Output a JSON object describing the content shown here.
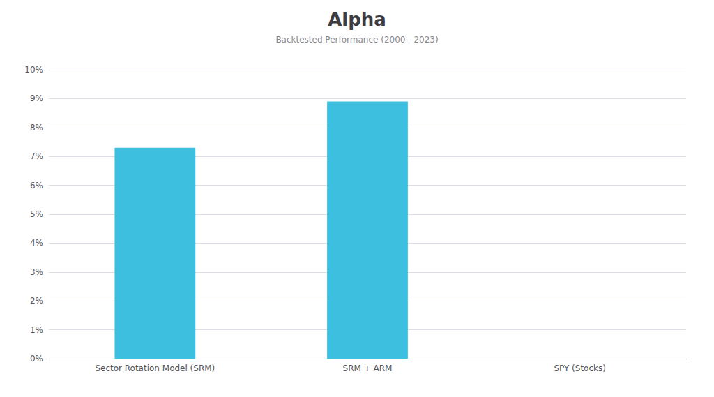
{
  "chart_data": {
    "type": "bar",
    "title": "Alpha",
    "subtitle": "Backtested Performance (2000 - 2023)",
    "categories": [
      "Sector Rotation Model (SRM)",
      "SRM + ARM",
      "SPY (Stocks)"
    ],
    "values": [
      0.073,
      0.089,
      0.0
    ],
    "color": "#3DC0E0",
    "ylim": [
      0,
      0.1
    ],
    "yticks": [
      {
        "value": 0.0,
        "label": "0%"
      },
      {
        "value": 0.01,
        "label": "1%"
      },
      {
        "value": 0.02,
        "label": "2%"
      },
      {
        "value": 0.03,
        "label": "3%"
      },
      {
        "value": 0.04,
        "label": "4%"
      },
      {
        "value": 0.05,
        "label": "5%"
      },
      {
        "value": 0.06,
        "label": "6%"
      },
      {
        "value": 0.07,
        "label": "7%"
      },
      {
        "value": 0.08,
        "label": "8%"
      },
      {
        "value": 0.09,
        "label": "9%"
      },
      {
        "value": 0.1,
        "label": "10%"
      }
    ],
    "grid": true
  }
}
